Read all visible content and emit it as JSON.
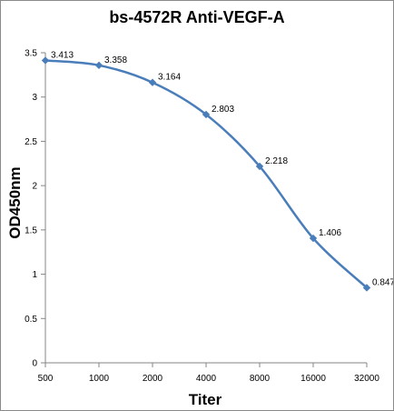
{
  "chart_data": {
    "type": "line",
    "title": "bs-4572R Anti-VEGF-A",
    "xlabel": "Titer",
    "ylabel": "OD450nm",
    "categories": [
      "500",
      "1000",
      "2000",
      "4000",
      "8000",
      "16000",
      "32000"
    ],
    "series": [
      {
        "values": [
          3.413,
          3.358,
          3.164,
          2.803,
          2.218,
          1.406,
          0.847
        ]
      }
    ],
    "data_labels": [
      "3.413",
      "3.358",
      "3.164",
      "2.803",
      "2.218",
      "1.406",
      "0.847"
    ],
    "ylim": [
      0,
      3.5
    ],
    "yticks": [
      "0",
      "0.5",
      "1",
      "1.5",
      "2",
      "2.5",
      "3",
      "3.5"
    ],
    "grid": false,
    "legend": "none",
    "line_color": "#4a7ebb",
    "axis_color": "#868686"
  }
}
